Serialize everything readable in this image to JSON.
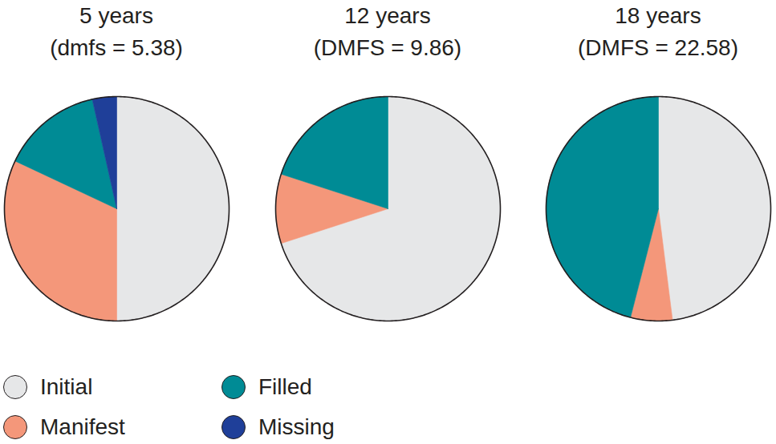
{
  "chart_data": [
    {
      "type": "pie",
      "title": "5 years",
      "subtitle": "(dmfs = 5.38)",
      "categories": [
        "Initial",
        "Manifest",
        "Filled",
        "Missing"
      ],
      "values": [
        50,
        32,
        14.5,
        3.5
      ],
      "colors": [
        "#e6e7e8",
        "#f4977a",
        "#008b95",
        "#1f3f99"
      ],
      "legend": "bottom-left"
    },
    {
      "type": "pie",
      "title": "12 years",
      "subtitle": "(DMFS = 9.86)",
      "categories": [
        "Initial",
        "Manifest",
        "Filled"
      ],
      "values": [
        70,
        10,
        20
      ],
      "colors": [
        "#e6e7e8",
        "#f4977a",
        "#008b95"
      ],
      "legend": "bottom-left"
    },
    {
      "type": "pie",
      "title": "18 years",
      "subtitle": "(DMFS = 22.58)",
      "categories": [
        "Initial",
        "Manifest",
        "Filled"
      ],
      "values": [
        48,
        6,
        46
      ],
      "colors": [
        "#e6e7e8",
        "#f4977a",
        "#008b95"
      ],
      "legend": "bottom-left"
    }
  ]
}
